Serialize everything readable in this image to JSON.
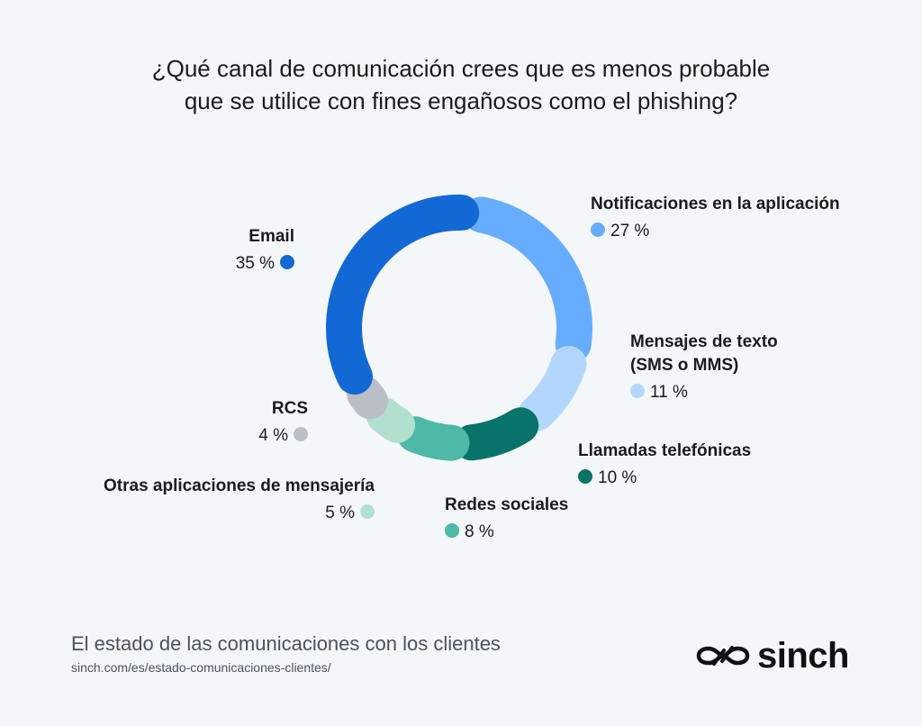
{
  "title_line1": "¿Qué canal de comunicación crees que es menos probable",
  "title_line2": "que se utilice con fines engañosos como el phishing?",
  "chart_data": {
    "type": "pie",
    "donut": true,
    "slices": [
      {
        "name": "Notificaciones en la aplicación",
        "value": 27,
        "label": "27 %",
        "color": "#66adff"
      },
      {
        "name": "Mensajes de texto (SMS o MMS)",
        "name_lines": [
          "Mensajes de texto",
          "(SMS o MMS)"
        ],
        "value": 11,
        "label": "11 %",
        "color": "#b3d7fc"
      },
      {
        "name": "Llamadas telefónicas",
        "value": 10,
        "label": "10 %",
        "color": "#087368"
      },
      {
        "name": "Redes sociales",
        "value": 8,
        "label": "8 %",
        "color": "#4db9a6"
      },
      {
        "name": "Otras aplicaciones de mensajería",
        "value": 5,
        "label": "5 %",
        "color": "#b2e0cf"
      },
      {
        "name": "RCS",
        "value": 4,
        "label": "4 %",
        "color": "#babec6"
      },
      {
        "name": "Email",
        "value": 35,
        "label": "35 %",
        "color": "#1268d5"
      }
    ]
  },
  "footer": {
    "title": "El estado de las comunicaciones con los clientes",
    "url": "sinch.com/es/estado-comunicaciones-clientes/"
  },
  "brand": {
    "name": "sinch"
  }
}
